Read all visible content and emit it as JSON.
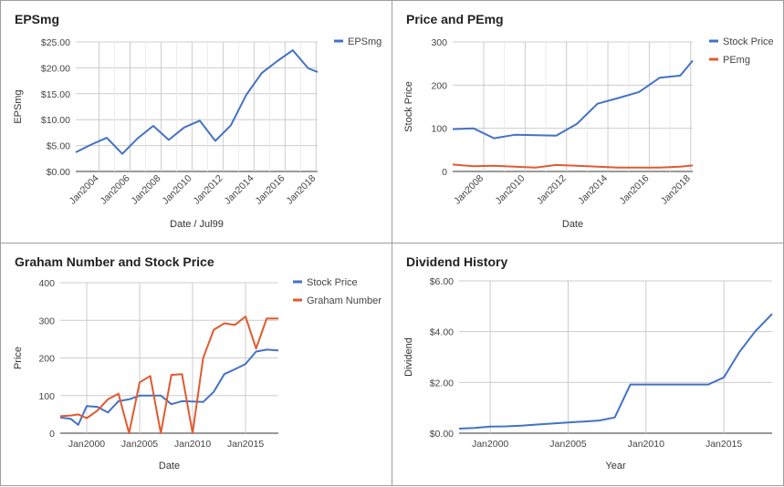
{
  "chart_data": [
    {
      "type": "line",
      "title": "EPSmg",
      "xlabel": "Date / Jul99",
      "ylabel": "EPSmg",
      "xlim": [
        2002.5,
        2018.1
      ],
      "ylim": [
        0,
        25
      ],
      "y_ticks": [
        "$0.00",
        "$5.00",
        "$10.00",
        "$15.00",
        "$20.00",
        "$25.00"
      ],
      "x_ticks": [
        "Jan2004",
        "Jan2006",
        "Jan2008",
        "Jan2010",
        "Jan2012",
        "Jan2014",
        "Jan2016",
        "Jan2018"
      ],
      "legend_position": "top-right",
      "grid": true,
      "series": [
        {
          "name": "EPSmg",
          "color": "#4472c4",
          "x": [
            2002.5,
            2003.5,
            2004.5,
            2005.5,
            2006.5,
            2007.5,
            2008.5,
            2009.5,
            2010.5,
            2011.5,
            2012.5,
            2013.5,
            2014.5,
            2015.5,
            2016.5,
            2017.5,
            2018.1
          ],
          "y": [
            3.7,
            5.2,
            6.5,
            3.4,
            6.4,
            8.8,
            6.1,
            8.5,
            9.8,
            5.9,
            8.9,
            14.8,
            19.0,
            21.3,
            23.4,
            19.9,
            19.2
          ]
        }
      ]
    },
    {
      "type": "line",
      "title": "Price and PEmg",
      "xlabel": "Date",
      "ylabel": "Stock Price",
      "xlim": [
        2006.5,
        2018.1
      ],
      "ylim": [
        0,
        300
      ],
      "y_ticks": [
        "0",
        "100",
        "200",
        "300"
      ],
      "x_ticks": [
        "Jan2008",
        "Jan2010",
        "Jan2012",
        "Jan2014",
        "Jan2016",
        "Jan2018"
      ],
      "legend_position": "top-right",
      "grid": true,
      "series": [
        {
          "name": "Stock Price",
          "color": "#4472c4",
          "x": [
            2006.5,
            2007.5,
            2008.5,
            2009.5,
            2010.5,
            2011.5,
            2012.5,
            2013.5,
            2014.5,
            2015.5,
            2016.5,
            2017.5,
            2018.1
          ],
          "y": [
            98,
            100,
            77,
            85,
            84,
            83,
            110,
            157,
            170,
            184,
            217,
            222,
            257
          ]
        },
        {
          "name": "PEmg",
          "color": "#e15a30",
          "x": [
            2006.5,
            2007.5,
            2008.5,
            2009.5,
            2010.5,
            2011.5,
            2012.5,
            2013.5,
            2014.5,
            2015.5,
            2016.5,
            2017.5,
            2018.1
          ],
          "y": [
            16,
            12,
            13,
            11,
            9,
            15,
            13,
            11,
            9,
            9,
            9,
            11,
            14
          ]
        }
      ]
    },
    {
      "type": "line",
      "title": "Graham Number and Stock Price",
      "xlabel": "Date",
      "ylabel": "Price",
      "xlim": [
        1997.5,
        2018.1
      ],
      "ylim": [
        0,
        400
      ],
      "y_ticks": [
        "0",
        "100",
        "200",
        "300",
        "400"
      ],
      "x_ticks": [
        "Jan2000",
        "Jan2005",
        "Jan2010",
        "Jan2015"
      ],
      "x_tick_values": [
        2000,
        2005,
        2010,
        2015
      ],
      "legend_position": "top-right",
      "grid": true,
      "series": [
        {
          "name": "Stock Price",
          "color": "#4472c4",
          "x": [
            1997.5,
            1998.5,
            1999.2,
            2000,
            2001,
            2002,
            2003,
            2004,
            2005,
            2006,
            2007,
            2008,
            2009,
            2010,
            2011,
            2012,
            2013,
            2014,
            2015,
            2016,
            2017,
            2018.1
          ],
          "y": [
            42,
            38,
            22,
            72,
            70,
            55,
            85,
            90,
            100,
            100,
            100,
            77,
            85,
            84,
            83,
            110,
            157,
            170,
            184,
            217,
            222,
            220
          ]
        },
        {
          "name": "Graham Number",
          "color": "#e15a30",
          "x": [
            1997.5,
            1998.5,
            1999.2,
            2000,
            2001,
            2002,
            2003,
            2004,
            2005,
            2006,
            2007,
            2008,
            2009,
            2010,
            2011,
            2012,
            2013,
            2014,
            2015,
            2016,
            2017,
            2018.1
          ],
          "y": [
            45,
            47,
            50,
            40,
            60,
            90,
            105,
            0,
            135,
            152,
            0,
            155,
            157,
            0,
            200,
            275,
            292,
            288,
            310,
            225,
            305,
            305
          ]
        }
      ]
    },
    {
      "type": "line",
      "title": "Dividend History",
      "xlabel": "Year",
      "ylabel": "Dividend",
      "xlim": [
        1998,
        2018.1
      ],
      "ylim": [
        0,
        6
      ],
      "y_ticks": [
        "$0.00",
        "$2.00",
        "$4.00",
        "$6.00"
      ],
      "x_ticks": [
        "Jan2000",
        "Jan2005",
        "Jan2010",
        "Jan2015"
      ],
      "x_tick_values": [
        2000,
        2005,
        2010,
        2015
      ],
      "grid": true,
      "series": [
        {
          "name": "",
          "color": "#4472c4",
          "x": [
            1998,
            1999,
            2000,
            2001,
            2002,
            2003,
            2004,
            2005,
            2006,
            2007,
            2008,
            2009,
            2010,
            2011,
            2012,
            2013,
            2014,
            2015,
            2016,
            2017,
            2018.1
          ],
          "y": [
            0.18,
            0.21,
            0.26,
            0.27,
            0.3,
            0.34,
            0.38,
            0.42,
            0.46,
            0.5,
            0.62,
            1.92,
            1.92,
            1.92,
            1.92,
            1.92,
            1.92,
            2.2,
            3.2,
            4.0,
            4.7
          ]
        }
      ]
    }
  ]
}
